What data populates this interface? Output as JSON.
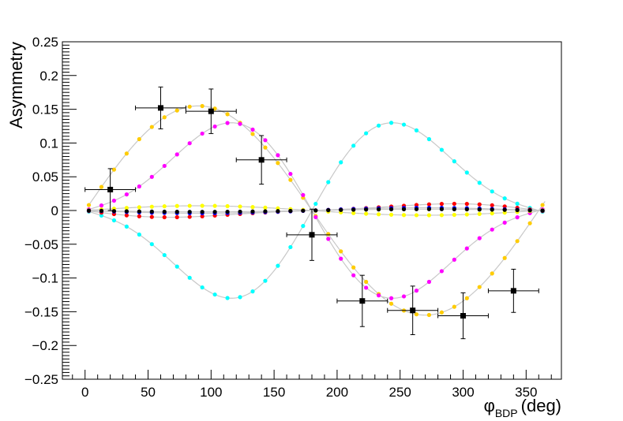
{
  "chart_data": {
    "type": "scatter",
    "title": "",
    "ylabel": "Asymmetry",
    "xlabel": {
      "main": "φ",
      "sub": "BDP",
      "unit": "(deg)"
    },
    "xlim": [
      -18,
      378
    ],
    "ylim": [
      -0.25,
      0.25
    ],
    "x_ticks": [
      0,
      50,
      100,
      150,
      200,
      250,
      300,
      350
    ],
    "x_tick_labels": [
      "0",
      "50",
      "100",
      "150",
      "200",
      "250",
      "300",
      "350"
    ],
    "y_ticks": [
      -0.25,
      -0.2,
      -0.15,
      -0.1,
      -0.05,
      0,
      0.05,
      0.1,
      0.15,
      0.2,
      0.25
    ],
    "y_tick_labels": [
      "−0.25",
      "−0.2",
      "−0.15",
      "−0.1",
      "−0.05",
      "0",
      "0.05",
      "0.1",
      "0.15",
      "0.2",
      "0.25"
    ],
    "grid": false,
    "legend": "none",
    "colors": {
      "orange": "#ffcc00",
      "magenta": "#ff00ff",
      "cyan": "#00ffff",
      "yellow": "#ffff00",
      "red": "#ff0000",
      "blue": "#0000ff",
      "black": "#000000",
      "curve": "#c8c8c8"
    },
    "model_series": [
      {
        "color": "orange",
        "amp": 0.155,
        "shape": [
          1.0,
          0.0
        ]
      },
      {
        "color": "magenta",
        "amp": 0.13,
        "shape": [
          0.78,
          -0.28
        ]
      },
      {
        "color": "cyan",
        "amp": -0.13,
        "shape": [
          0.78,
          -0.28
        ]
      },
      {
        "color": "yellow",
        "amp": 0.007,
        "shape": [
          1.0,
          0.0
        ]
      },
      {
        "color": "red",
        "amp": -0.01,
        "shape": [
          0.7,
          0.2
        ]
      },
      {
        "color": "blue",
        "amp": -0.004,
        "shape": [
          1.0,
          0.0
        ]
      },
      {
        "color": "black",
        "amp": -0.002,
        "shape": [
          1.0,
          0.0
        ]
      }
    ],
    "model_x_range": [
      3,
      365
    ],
    "model_point_step": 10,
    "data_points": {
      "x": [
        20,
        60,
        100,
        140,
        180,
        220,
        260,
        300,
        340
      ],
      "y": [
        0.031,
        0.152,
        0.147,
        0.075,
        -0.036,
        -0.134,
        -0.148,
        -0.156,
        -0.119
      ],
      "x_err": [
        20,
        20,
        20,
        20,
        20,
        20,
        20,
        20,
        20
      ],
      "y_err": [
        0.031,
        0.031,
        0.033,
        0.036,
        0.038,
        0.038,
        0.036,
        0.034,
        0.032
      ]
    }
  }
}
